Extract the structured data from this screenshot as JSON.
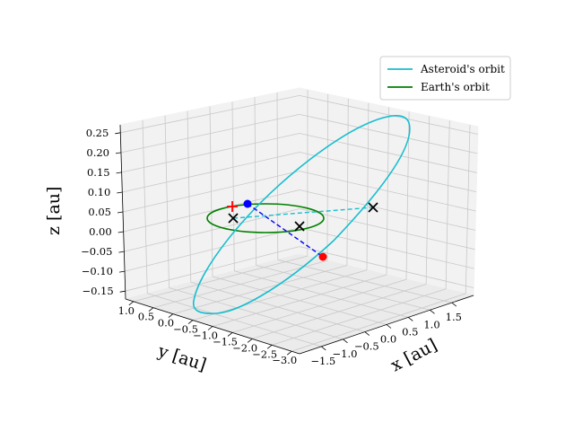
{
  "chart_data": {
    "type": "line",
    "title": "",
    "axes": {
      "x": {
        "label": "x [au]",
        "range": [
          -2.0,
          2.0
        ],
        "ticks": [
          "-1.5",
          "-1.0",
          "-0.5",
          "0.0",
          "0.5",
          "1.0",
          "1.5"
        ]
      },
      "y": {
        "label": "y [au]",
        "range": [
          -3.2,
          1.2
        ],
        "ticks": [
          "1.0",
          "0.5",
          "0.0",
          "-0.5",
          "-1.0",
          "-1.5",
          "-2.0",
          "-2.5",
          "-3.0"
        ]
      },
      "z": {
        "label": "z [au]",
        "range": [
          -0.17,
          0.27
        ],
        "ticks": [
          "-0.15",
          "-0.10",
          "-0.05",
          "0.00",
          "0.05",
          "0.10",
          "0.15",
          "0.20",
          "0.25"
        ]
      }
    },
    "grid": true,
    "legend": {
      "placement": "top-right"
    },
    "series": [
      {
        "name": "Asteroid's orbit",
        "color": "#17becf"
      },
      {
        "name": "Earth's orbit",
        "color": "#008000"
      }
    ],
    "markers": [
      {
        "symbol": "blue-dot",
        "color": "#0000ff"
      },
      {
        "symbol": "red-dot",
        "color": "#ff0000"
      },
      {
        "symbol": "red-plus",
        "color": "#ff0000"
      },
      {
        "symbol": "black-x",
        "color": "#000000"
      },
      {
        "symbol": "black-x",
        "color": "#000000"
      },
      {
        "symbol": "black-x",
        "color": "#000000"
      }
    ],
    "connectors": [
      {
        "style": "dashed",
        "color": "#0000ff"
      },
      {
        "style": "dashed",
        "color": "#17becf"
      }
    ]
  }
}
